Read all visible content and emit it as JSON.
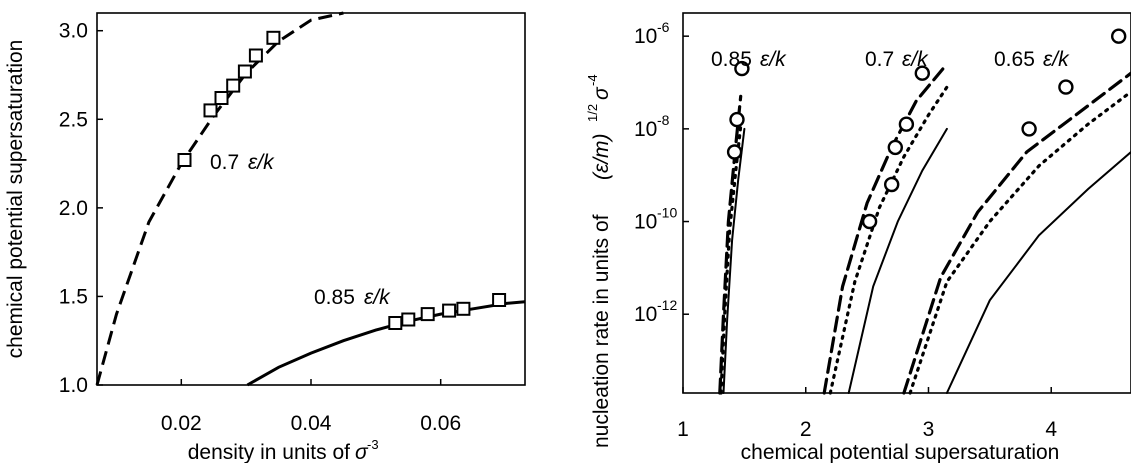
{
  "chart_data": [
    {
      "type": "line",
      "xlabel": "density in units of",
      "xlabel_symbol": "σ",
      "xlabel_exponent": "-3",
      "ylabel": "chemical potential supersaturation",
      "xlim": [
        0.007,
        0.073
      ],
      "ylim": [
        1.0,
        3.1
      ],
      "xticks": [
        0.02,
        0.04,
        0.06
      ],
      "xtick_labels": [
        "0.02",
        "0.04",
        "0.06"
      ],
      "yticks": [
        1.0,
        1.5,
        2.0,
        2.5,
        3.0
      ],
      "ytick_labels": [
        "1.0",
        "1.5",
        "2.0",
        "2.5",
        "3.0"
      ],
      "grid": false,
      "series": [
        {
          "label_num": "0.7",
          "style": "dashed",
          "line": {
            "x": [
              0.007,
              0.01,
              0.015,
              0.02,
              0.025,
              0.03,
              0.035,
              0.04,
              0.045
            ],
            "y": [
              1.0,
              1.4,
              1.92,
              2.25,
              2.52,
              2.76,
              2.94,
              3.06,
              3.1
            ]
          },
          "markers": {
            "x": [
              0.0205,
              0.0245,
              0.0262,
              0.028,
              0.0298,
              0.0315,
              0.0342
            ],
            "y": [
              2.27,
              2.55,
              2.62,
              2.69,
              2.77,
              2.86,
              2.96
            ]
          }
        },
        {
          "label_num": "0.85",
          "style": "solid",
          "line": {
            "x": [
              0.0302,
              0.035,
              0.04,
              0.045,
              0.05,
              0.055,
              0.06,
              0.065,
              0.07,
              0.073
            ],
            "y": [
              1.0,
              1.1,
              1.18,
              1.25,
              1.31,
              1.36,
              1.4,
              1.43,
              1.46,
              1.47
            ]
          },
          "markers": {
            "x": [
              0.053,
              0.055,
              0.058,
              0.0613,
              0.0635,
              0.069
            ],
            "y": [
              1.35,
              1.37,
              1.4,
              1.42,
              1.43,
              1.48
            ]
          }
        }
      ]
    },
    {
      "type": "line",
      "xlabel": "chemical potential supersaturation",
      "ylabel": "nucleation rate in units of",
      "ylabel_math": "(ε/m)",
      "ylabel_exp1": "1/2",
      "ylabel_sigma": "σ",
      "ylabel_exp2": "-4",
      "y_scale": "log",
      "xlim": [
        1.0,
        4.65
      ],
      "ylim_log10": [
        -13.7,
        -5.5
      ],
      "xticks": [
        1,
        2,
        3,
        4
      ],
      "xtick_labels": [
        "1",
        "2",
        "3",
        "4"
      ],
      "yticks_log10": [
        -6,
        -8,
        -10,
        -12
      ],
      "ytick_base": "10",
      "ytick_exponents": [
        "-6",
        "-8",
        "-10",
        "-12"
      ],
      "grid": false,
      "groups": [
        {
          "label_num": "0.85",
          "dashed": {
            "x": [
              1.3,
              1.33,
              1.37,
              1.42,
              1.47
            ],
            "log10y": [
              -13.7,
              -12.0,
              -10.0,
              -8.6,
              -7.3
            ]
          },
          "dotted": {
            "x": [
              1.31,
              1.34,
              1.38,
              1.43,
              1.48
            ],
            "log10y": [
              -13.7,
              -12.0,
              -10.2,
              -8.9,
              -7.7
            ]
          },
          "solid": {
            "x": [
              1.33,
              1.36,
              1.4,
              1.45,
              1.5
            ],
            "log10y": [
              -13.7,
              -12.1,
              -10.4,
              -9.1,
              -8.0
            ]
          },
          "circles": {
            "x": [
              1.42,
              1.44,
              1.48
            ],
            "log10y": [
              -8.5,
              -7.8,
              -6.7
            ]
          }
        },
        {
          "label_num": "0.7",
          "dashed": {
            "x": [
              2.15,
              2.3,
              2.5,
              2.7,
              2.9,
              3.15
            ],
            "log10y": [
              -13.7,
              -11.4,
              -9.6,
              -8.4,
              -7.4,
              -6.6
            ]
          },
          "dotted": {
            "x": [
              2.2,
              2.4,
              2.6,
              2.8,
              3.0,
              3.15
            ],
            "log10y": [
              -13.7,
              -11.3,
              -9.7,
              -8.6,
              -7.7,
              -7.1
            ]
          },
          "solid": {
            "x": [
              2.35,
              2.55,
              2.75,
              2.95,
              3.15
            ],
            "log10y": [
              -13.7,
              -11.4,
              -10.0,
              -8.9,
              -8.0
            ]
          },
          "circles": {
            "x": [
              2.52,
              2.7,
              2.73,
              2.82,
              2.95
            ],
            "log10y": [
              -10.0,
              -9.2,
              -8.4,
              -7.9,
              -6.8
            ]
          }
        },
        {
          "label_num": "0.65",
          "dashed": {
            "x": [
              2.8,
              3.1,
              3.4,
              3.8,
              4.2,
              4.65
            ],
            "log10y": [
              -13.7,
              -11.2,
              -9.8,
              -8.5,
              -7.7,
              -6.8
            ]
          },
          "dotted": {
            "x": [
              2.85,
              3.15,
              3.5,
              3.9,
              4.3,
              4.65
            ],
            "log10y": [
              -13.7,
              -11.3,
              -10.0,
              -8.8,
              -7.9,
              -7.2
            ]
          },
          "solid": {
            "x": [
              3.15,
              3.5,
              3.9,
              4.3,
              4.65
            ],
            "log10y": [
              -13.7,
              -11.7,
              -10.3,
              -9.3,
              -8.5
            ]
          },
          "circles": {
            "x": [
              3.82,
              4.12,
              4.55
            ],
            "log10y": [
              -8.0,
              -7.1,
              -6.0
            ]
          }
        }
      ],
      "unit_text": "ε/k"
    }
  ]
}
